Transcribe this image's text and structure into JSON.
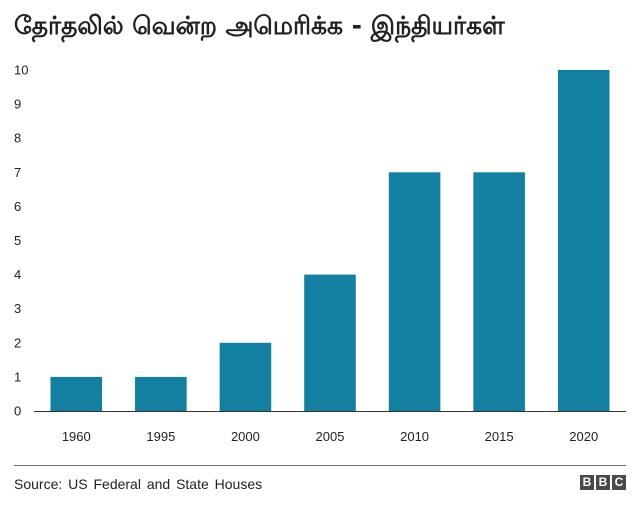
{
  "chart_data": {
    "type": "bar",
    "title": "தேர்தலில் வென்ற அமெரிக்க - இந்தியர்கள்",
    "categories": [
      "1960",
      "1995",
      "2000",
      "2005",
      "2010",
      "2015",
      "2020"
    ],
    "values": [
      1,
      1,
      2,
      4,
      7,
      7,
      10
    ],
    "xlabel": "",
    "ylabel": "",
    "ylim": [
      0,
      10
    ],
    "yticks": [
      "0",
      "1",
      "2",
      "3",
      "4",
      "5",
      "6",
      "7",
      "8",
      "9",
      "10"
    ],
    "grid": false,
    "bar_color": "#1380a1"
  },
  "footer": {
    "source": "Source: US Federal and State Houses",
    "logo_letters": [
      "B",
      "B",
      "C"
    ]
  }
}
